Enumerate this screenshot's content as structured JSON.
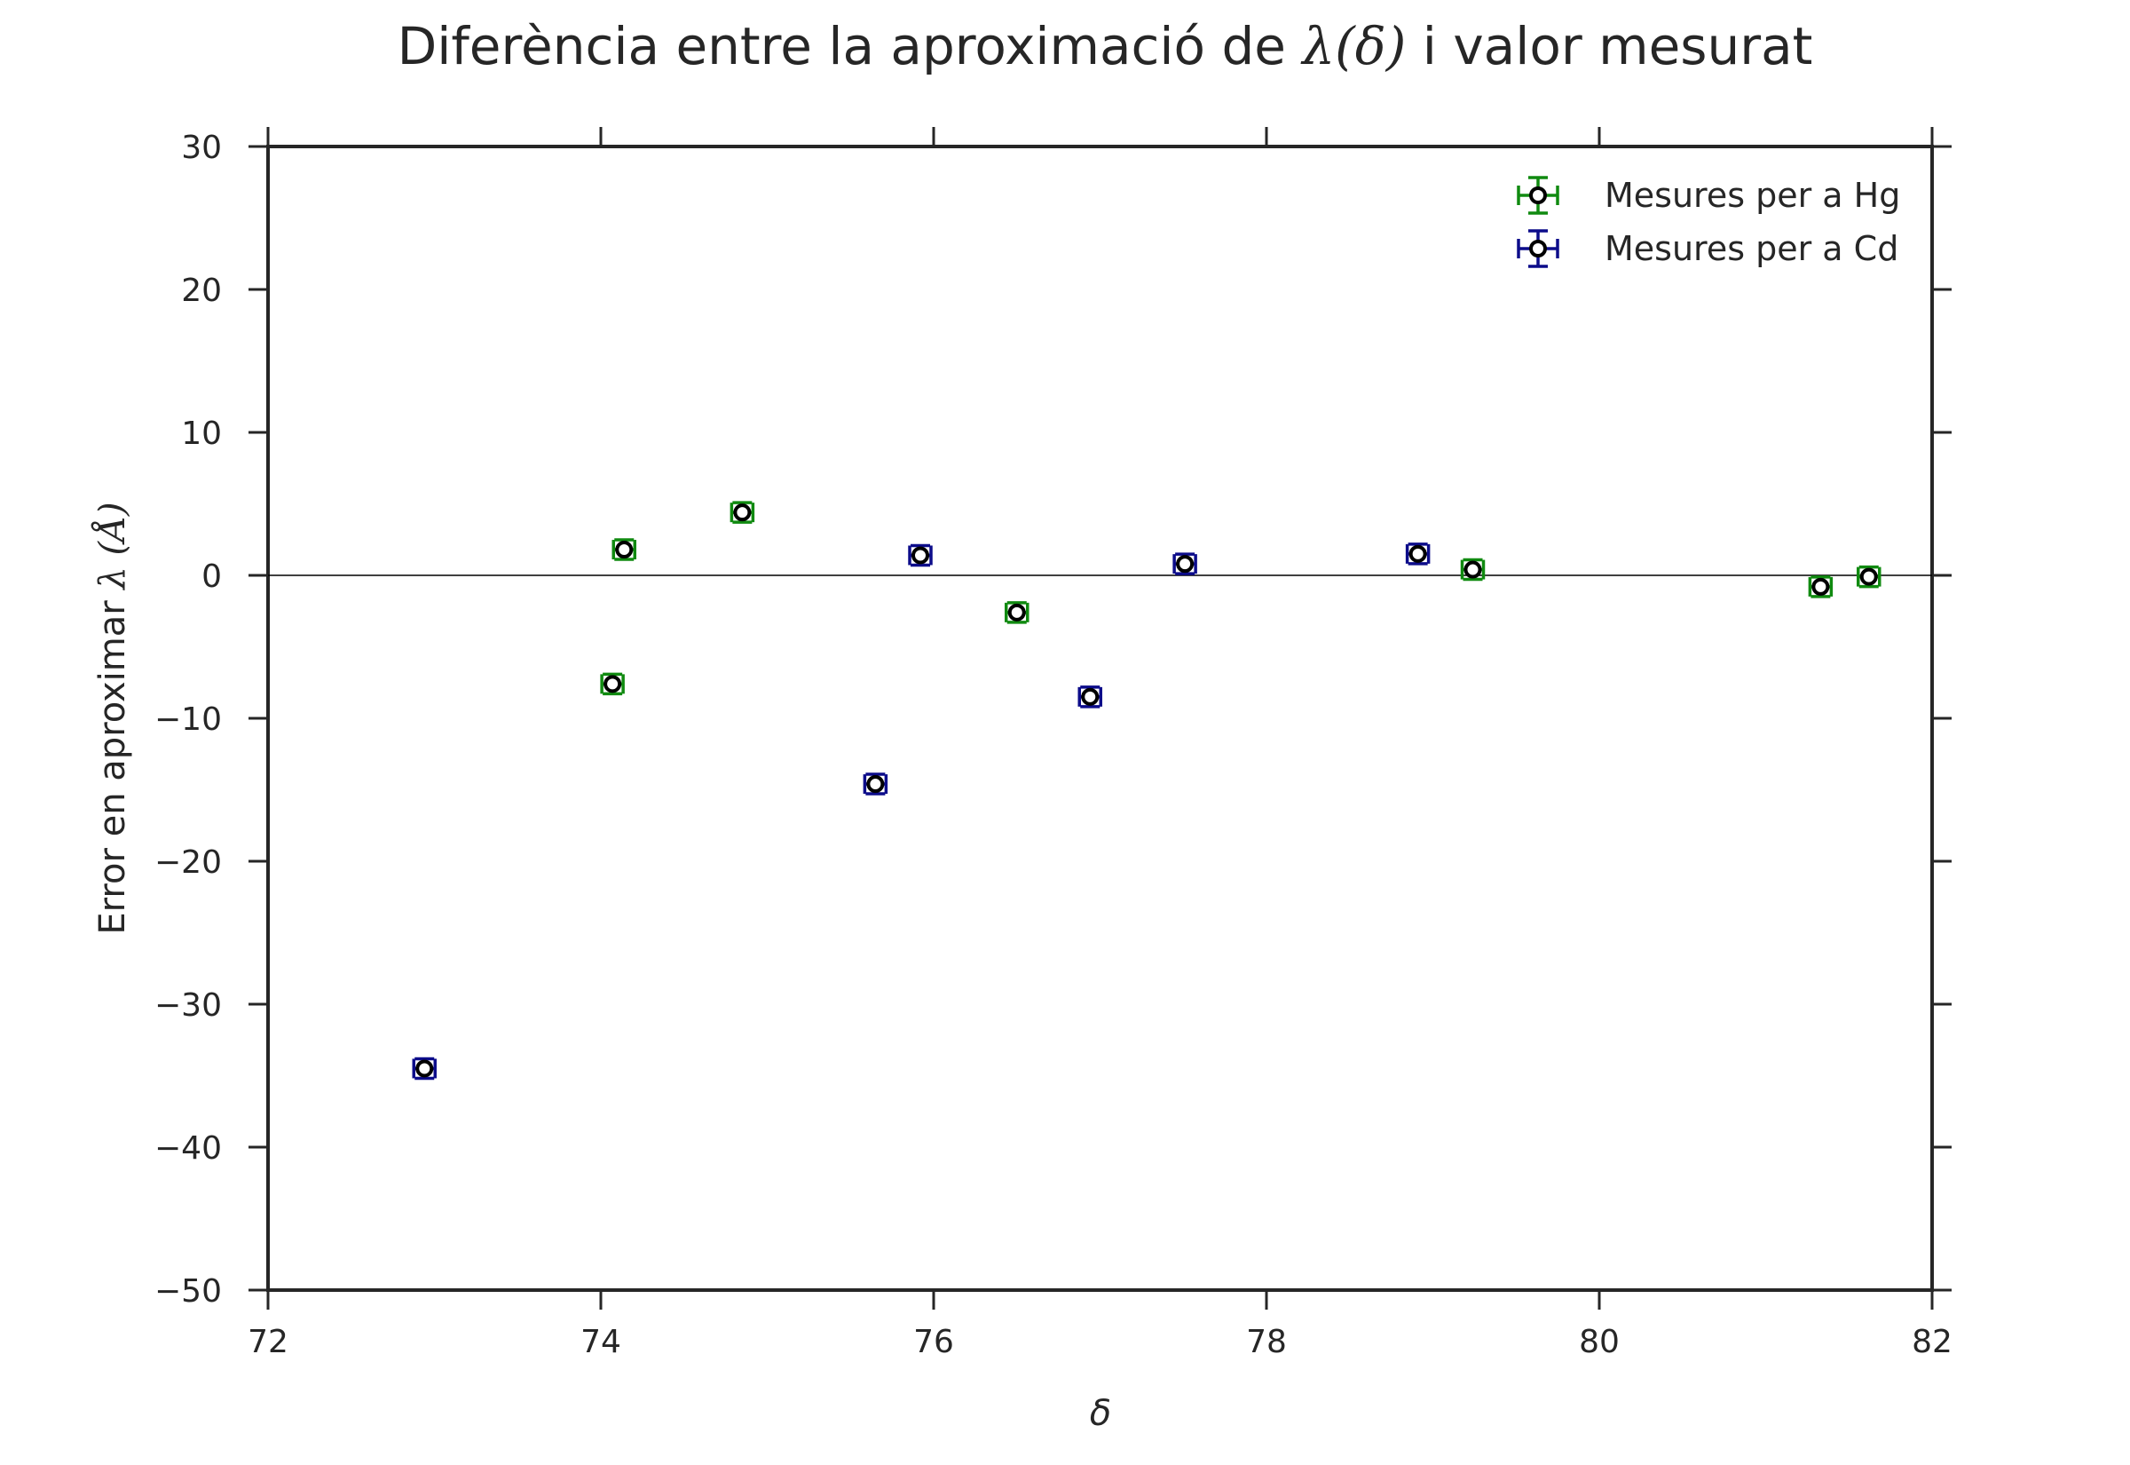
{
  "chart_data": {
    "type": "scatter",
    "title": {
      "prefix": "Diferència entre la aproximació de ",
      "math": "λ(δ)",
      "suffix": " i valor mesurat"
    },
    "xlabel": "δ",
    "ylabel": {
      "prefix": "Error en aproximar ",
      "math": "λ (Å)"
    },
    "xlim": [
      72,
      82
    ],
    "ylim": [
      -50,
      30
    ],
    "xticks": [
      72,
      74,
      76,
      78,
      80,
      82
    ],
    "yticks": [
      30,
      20,
      10,
      0,
      -10,
      -20,
      -30,
      -40,
      -50
    ],
    "ytick_labels": [
      "30",
      "20",
      "10",
      "0",
      "−10",
      "−20",
      "−30",
      "−40",
      "−50"
    ],
    "grid": false,
    "zero_line": true,
    "legend_position": "top-right",
    "series": [
      {
        "name": "Mesures per a Hg",
        "color": "#108a10",
        "points": [
          {
            "x": 74.07,
            "y": -7.6,
            "xerr": 0.04,
            "yerr": 0.6
          },
          {
            "x": 74.14,
            "y": 1.8,
            "xerr": 0.04,
            "yerr": 0.6
          },
          {
            "x": 74.85,
            "y": 4.4,
            "xerr": 0.04,
            "yerr": 0.6
          },
          {
            "x": 76.5,
            "y": -2.6,
            "xerr": 0.04,
            "yerr": 0.6
          },
          {
            "x": 79.24,
            "y": 0.4,
            "xerr": 0.04,
            "yerr": 0.6
          },
          {
            "x": 81.33,
            "y": -0.8,
            "xerr": 0.06,
            "yerr": 0.6
          },
          {
            "x": 81.62,
            "y": -0.1,
            "xerr": 0.04,
            "yerr": 0.6
          }
        ]
      },
      {
        "name": "Mesures per a Cd",
        "color": "#0c0c8a",
        "points": [
          {
            "x": 72.94,
            "y": -34.5,
            "xerr": 0.04,
            "yerr": 0.6
          },
          {
            "x": 75.65,
            "y": -14.6,
            "xerr": 0.04,
            "yerr": 0.6
          },
          {
            "x": 75.92,
            "y": 1.4,
            "xerr": 0.04,
            "yerr": 0.6
          },
          {
            "x": 76.94,
            "y": -8.5,
            "xerr": 0.04,
            "yerr": 0.6
          },
          {
            "x": 77.51,
            "y": 0.8,
            "xerr": 0.04,
            "yerr": 0.6
          },
          {
            "x": 78.91,
            "y": 1.5,
            "xerr": 0.04,
            "yerr": 0.6
          }
        ]
      }
    ]
  }
}
